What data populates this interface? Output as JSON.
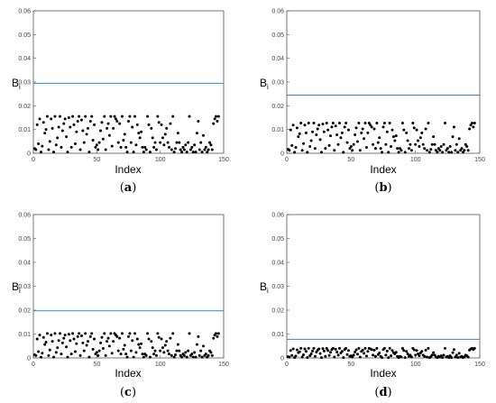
{
  "charts": [
    {
      "caption": {
        "open": "(",
        "letter": "a",
        "close": ")"
      },
      "chart_data": {
        "type": "scatter",
        "xlabel": "Index",
        "ylabel_main": "B",
        "ylabel_sub": "i",
        "xlim": [
          0,
          150
        ],
        "ylim": [
          0,
          0.06
        ],
        "xticks": [
          0,
          50,
          100,
          150
        ],
        "yticks": [
          0,
          0.01,
          0.02,
          0.03,
          0.04,
          0.05,
          0.06
        ],
        "threshold": 0.0295,
        "threshold_color": "#2e8bd0",
        "point_color": "#000000",
        "scale": 1.0
      }
    },
    {
      "caption": {
        "open": "(",
        "letter": "b",
        "close": ")"
      },
      "chart_data": {
        "type": "scatter",
        "xlabel": "Index",
        "ylabel_main": "B",
        "ylabel_sub": "i",
        "xlim": [
          0,
          150
        ],
        "ylim": [
          0,
          0.06
        ],
        "xticks": [
          0,
          50,
          100,
          150
        ],
        "yticks": [
          0,
          0.01,
          0.02,
          0.03,
          0.04,
          0.05,
          0.06
        ],
        "threshold": 0.0245,
        "threshold_color": "#2e8bd0",
        "point_color": "#000000",
        "scale": 0.82
      }
    },
    {
      "caption": {
        "open": "(",
        "letter": "c",
        "close": ")"
      },
      "chart_data": {
        "type": "scatter",
        "xlabel": "Index",
        "ylabel_main": "B",
        "ylabel_sub": "i",
        "xlim": [
          0,
          150
        ],
        "ylim": [
          0,
          0.06
        ],
        "xticks": [
          0,
          50,
          100,
          150
        ],
        "yticks": [
          0,
          0.01,
          0.02,
          0.03,
          0.04,
          0.05,
          0.06
        ],
        "threshold": 0.0197,
        "threshold_color": "#2e8bd0",
        "point_color": "#000000",
        "scale": 0.66
      }
    },
    {
      "caption": {
        "open": "(",
        "letter": "d",
        "close": ")"
      },
      "chart_data": {
        "type": "scatter",
        "xlabel": "Index",
        "ylabel_main": "B",
        "ylabel_sub": "i",
        "xlim": [
          0,
          150
        ],
        "ylim": [
          0,
          0.06
        ],
        "xticks": [
          0,
          50,
          100,
          150
        ],
        "yticks": [
          0,
          0.01,
          0.02,
          0.03,
          0.04,
          0.05,
          0.06
        ],
        "threshold": 0.0078,
        "threshold_color": "#2e8bd0",
        "point_color": "#000000",
        "scale": 0.26
      }
    }
  ],
  "base_values": [
    0.002,
    0.0015,
    0.012,
    0.004,
    0.0145,
    0.0005,
    0.003,
    0.013,
    0.0085,
    0.01,
    0.0155,
    0.0015,
    0.005,
    0.0145,
    0.0105,
    0.0005,
    0.0155,
    0.0035,
    0.0065,
    0.011,
    0.0155,
    0.0025,
    0.0095,
    0.0125,
    0.0145,
    0.007,
    0.0005,
    0.015,
    0.011,
    0.0025,
    0.0155,
    0.012,
    0.004,
    0.009,
    0.0135,
    0.0155,
    0.0015,
    0.014,
    0.0095,
    0.0045,
    0.0155,
    0.008,
    0.0105,
    0.0005,
    0.0135,
    0.0155,
    0.0055,
    0.012,
    0.0025,
    0.0035,
    0.0015,
    0.0045,
    0.0095,
    0.013,
    0.006,
    0.0155,
    0.0015,
    0.0105,
    0.0125,
    0.0075,
    0.0155,
    0.003,
    0.0105,
    0.0155,
    0.0145,
    0.0135,
    0.0045,
    0.0125,
    0.0025,
    0.0155,
    0.0055,
    0.008,
    0.0025,
    0.0005,
    0.0135,
    0.0155,
    0.0045,
    0.011,
    0.0005,
    0.0155,
    0.0035,
    0.012,
    0.0085,
    0.0065,
    0.009,
    0.0025,
    0.0005,
    0.0025,
    0.0015,
    0.0155,
    0.012,
    0.0005,
    0.0105,
    0.0065,
    0.0025,
    0.0045,
    0.0015,
    0.0155,
    0.013,
    0.0045,
    0.012,
    0.0065,
    0.0035,
    0.008,
    0.0105,
    0.0045,
    0.0025,
    0.0125,
    0.0015,
    0.0155,
    0.0005,
    0.002,
    0.0045,
    0.0085,
    0.0045,
    0.0015,
    0.0005,
    0.0025,
    0.0015,
    0.0035,
    0.0005,
    0.0045,
    0.0155,
    0.0015,
    0.0025,
    0.0005,
    0.0035,
    0.0005,
    0.0085,
    0.0135,
    0.0015,
    0.0045,
    0.0005,
    0.0075,
    0.0015,
    0.0025,
    0.0005,
    0.0015,
    0.0045,
    0.0035,
    0.0015,
    0.0125,
    0.0145,
    0.0155,
    0.0135,
    0.0155
  ]
}
